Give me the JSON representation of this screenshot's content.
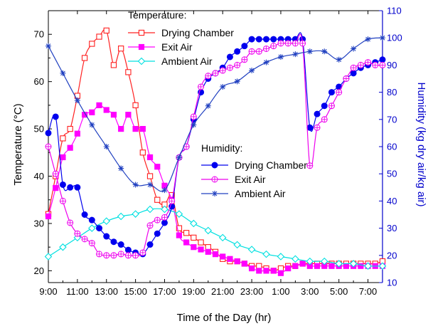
{
  "chart_data": {
    "type": "line",
    "xlabel": "Time of the Day (hr)",
    "ylabel": "Temperature (°C)",
    "ylabel_right": "Humidity (kg dry air/kg air)",
    "xlim": [
      9,
      32
    ],
    "ylim": [
      17.5,
      75
    ],
    "ylim_right": [
      10,
      110
    ],
    "x_ticks": [
      9,
      11,
      13,
      15,
      17,
      19,
      21,
      23,
      25,
      27,
      29,
      31
    ],
    "x_tick_labels": [
      "9:00",
      "11:00",
      "13:00",
      "15:00",
      "17:00",
      "19:00",
      "21:00",
      "23:00",
      "1:00",
      "3:00",
      "5:00",
      "7:00"
    ],
    "y_ticks": [
      20,
      30,
      40,
      50,
      60,
      70
    ],
    "y_ticks_right": [
      10,
      20,
      30,
      40,
      50,
      60,
      70,
      80,
      90,
      100,
      110
    ],
    "grid": false,
    "legend_groups": [
      "Temperature:",
      "Humidity:"
    ],
    "series": [
      {
        "name": "Drying Chamber",
        "group": "temperature",
        "axis": "left",
        "color": "#ff2020",
        "marker": "square-open",
        "x": [
          9,
          9.5,
          10,
          10.5,
          11,
          11.5,
          12,
          12.5,
          13,
          13.5,
          14,
          14.5,
          15,
          15.5,
          16,
          16.5,
          17,
          17.5,
          18,
          18.5,
          19,
          19.5,
          20,
          20.5,
          21,
          21.5,
          22,
          22.5,
          23,
          23.5,
          24,
          24.5,
          25,
          25.5,
          26,
          26.5,
          27,
          27.5,
          28,
          28.5,
          29,
          29.5,
          30,
          30.5,
          31,
          31.5,
          32
        ],
        "y": [
          32,
          40,
          48,
          50,
          57,
          65,
          68,
          69.5,
          70.8,
          63.5,
          67,
          62,
          55,
          45,
          40,
          35,
          34,
          36,
          29,
          28,
          27,
          26,
          25,
          24,
          22.5,
          22,
          22,
          21.5,
          21,
          21,
          20.5,
          20,
          20.5,
          21,
          21,
          21.5,
          21.5,
          21.5,
          21.5,
          21.5,
          21.5,
          21.5,
          21.5,
          21.5,
          21.5,
          21.5,
          22
        ]
      },
      {
        "name": "Exit Air",
        "group": "temperature",
        "axis": "left",
        "color": "#ff00ff",
        "marker": "square-filled",
        "x": [
          9,
          9.5,
          10,
          10.5,
          11,
          11.5,
          12,
          12.5,
          13,
          13.5,
          14,
          14.5,
          15,
          15.5,
          16,
          16.5,
          17,
          17.5,
          18,
          18.5,
          19,
          19.5,
          20,
          20.5,
          21,
          21.5,
          22,
          22.5,
          23,
          23.5,
          24,
          24.5,
          25,
          25.5,
          26,
          26.5,
          27,
          27.5,
          28,
          28.5,
          29,
          29.5,
          30,
          30.5,
          31,
          31.5,
          32
        ],
        "y": [
          31.5,
          37.5,
          44,
          46,
          49,
          53,
          53.5,
          55,
          54,
          53,
          50,
          53,
          50,
          50,
          44,
          42,
          38,
          35,
          27.5,
          26,
          25,
          24.5,
          24,
          23.5,
          23,
          22.5,
          22,
          21.5,
          20.5,
          20,
          20,
          20,
          19.5,
          20.5,
          21,
          21.5,
          21,
          21,
          21,
          21,
          21,
          21,
          21,
          21,
          21,
          21,
          21
        ]
      },
      {
        "name": "Ambient Air",
        "group": "temperature",
        "axis": "left",
        "color": "#00e0e0",
        "marker": "diamond-open",
        "x": [
          9,
          10,
          11,
          12,
          13,
          14,
          15,
          16,
          17,
          18,
          19,
          20,
          21,
          22,
          23,
          24,
          25,
          26,
          27,
          28,
          29,
          30,
          31,
          32
        ],
        "y": [
          23,
          25,
          27,
          29,
          30.5,
          31.5,
          32,
          33,
          33,
          32,
          30,
          28.5,
          27,
          25.5,
          24.5,
          23.5,
          23,
          22.5,
          22,
          22,
          21.5,
          21.5,
          21,
          21
        ]
      },
      {
        "name": "Drying Chamber",
        "group": "humidity",
        "axis": "right",
        "color": "#0000ee",
        "marker": "circle-filled",
        "x": [
          9,
          9.5,
          10,
          10.5,
          11,
          11.5,
          12,
          12.5,
          13,
          13.5,
          14,
          14.5,
          15,
          15.5,
          16,
          16.5,
          17,
          17.5,
          18,
          18.5,
          19,
          19.5,
          20,
          20.5,
          21,
          21.5,
          22,
          22.5,
          23,
          23.5,
          24,
          24.5,
          25,
          25.5,
          26,
          26.5,
          27,
          27.5,
          28,
          28.5,
          29,
          29.5,
          30,
          30.5,
          31,
          31.5,
          32
        ],
        "y": [
          65,
          71,
          46,
          45,
          45,
          35,
          33,
          30,
          27,
          25,
          24,
          22,
          21,
          20.5,
          24,
          28,
          32,
          38,
          56,
          60,
          70,
          80,
          85,
          87,
          89,
          93,
          95,
          97,
          99.5,
          99.5,
          99.5,
          99.5,
          99.5,
          99.5,
          99.5,
          99.5,
          67,
          72,
          75,
          80,
          82,
          85,
          87,
          89,
          90,
          91,
          92
        ]
      },
      {
        "name": "Exit Air",
        "group": "humidity",
        "axis": "right",
        "color": "#ee00ee",
        "marker": "circle-crossed",
        "x": [
          9,
          9.5,
          10,
          10.5,
          11,
          11.5,
          12,
          12.5,
          13,
          13.5,
          14,
          14.5,
          15,
          15.5,
          16,
          16.5,
          17,
          17.5,
          18,
          18.5,
          19,
          19.5,
          20,
          20.5,
          21,
          21.5,
          22,
          22.5,
          23,
          23.5,
          24,
          24.5,
          25,
          25.5,
          26,
          26.5,
          27,
          27.5,
          28,
          28.5,
          29,
          29.5,
          30,
          30.5,
          31,
          31.5,
          32
        ],
        "y": [
          60,
          50,
          40,
          32,
          28,
          26,
          24.5,
          20.5,
          20,
          20,
          20.5,
          20,
          20,
          21,
          31,
          33,
          34,
          40,
          56,
          60,
          71,
          82,
          86,
          87,
          88,
          89,
          90,
          92,
          95,
          95,
          96,
          97,
          98,
          98,
          98,
          98,
          53,
          67,
          70,
          75,
          80,
          85,
          89,
          90,
          91,
          90,
          90
        ]
      },
      {
        "name": "Ambient Air",
        "group": "humidity",
        "axis": "right",
        "color": "#2040c0",
        "marker": "star",
        "x": [
          9,
          10,
          11,
          12,
          13,
          14,
          15,
          16,
          17,
          18,
          19,
          20,
          21,
          22,
          23,
          24,
          25,
          26,
          27,
          28,
          29,
          30,
          31,
          32
        ],
        "y": [
          97,
          87,
          77,
          68,
          60,
          52,
          46,
          46,
          44,
          56,
          68,
          75,
          82,
          84,
          88,
          91,
          93,
          94,
          95,
          95,
          92,
          96,
          99.5,
          100
        ]
      }
    ]
  }
}
